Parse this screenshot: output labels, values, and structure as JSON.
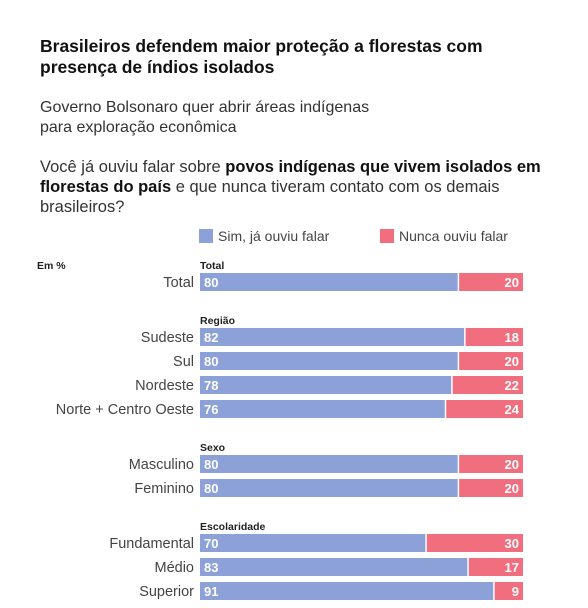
{
  "title": "Brasileiros defendem maior proteção a florestas com presença de índios isolados",
  "subtitle_line1": "Governo Bolsonaro quer abrir áreas indígenas",
  "subtitle_line2": "para exploração econômica",
  "question": {
    "part1": "Você já ouviu falar sobre ",
    "bold": "povos indígenas que vivem isolados em florestas do país",
    "part2": " e que nunca tiveram contato com os demais brasileiros?"
  },
  "unit_label": "Em %",
  "colors": {
    "sim": "#8ca1d8",
    "nunca": "#f06e7e"
  },
  "chart_data": {
    "type": "bar",
    "stacked": true,
    "orientation": "horizontal",
    "series": [
      {
        "name": "Sim, já ouviu falar",
        "values": [
          80,
          82,
          80,
          78,
          76,
          80,
          80,
          70,
          83,
          91
        ]
      },
      {
        "name": "Nunca ouviu falar",
        "values": [
          20,
          18,
          20,
          22,
          24,
          20,
          20,
          30,
          17,
          9
        ]
      }
    ],
    "categories": [
      "Total",
      "Sudeste",
      "Sul",
      "Nordeste",
      "Norte + Centro Oeste",
      "Masculino",
      "Feminino",
      "Fundamental",
      "Médio",
      "Superior"
    ],
    "groups": [
      {
        "name": "Total",
        "categories": [
          "Total"
        ]
      },
      {
        "name": "Região",
        "categories": [
          "Sudeste",
          "Sul",
          "Nordeste",
          "Norte + Centro Oeste"
        ]
      },
      {
        "name": "Sexo",
        "categories": [
          "Masculino",
          "Feminino"
        ]
      },
      {
        "name": "Escolaridade",
        "categories": [
          "Fundamental",
          "Médio",
          "Superior"
        ]
      }
    ],
    "xlim": [
      0,
      100
    ],
    "legend_position": "top-right",
    "grid": false
  }
}
